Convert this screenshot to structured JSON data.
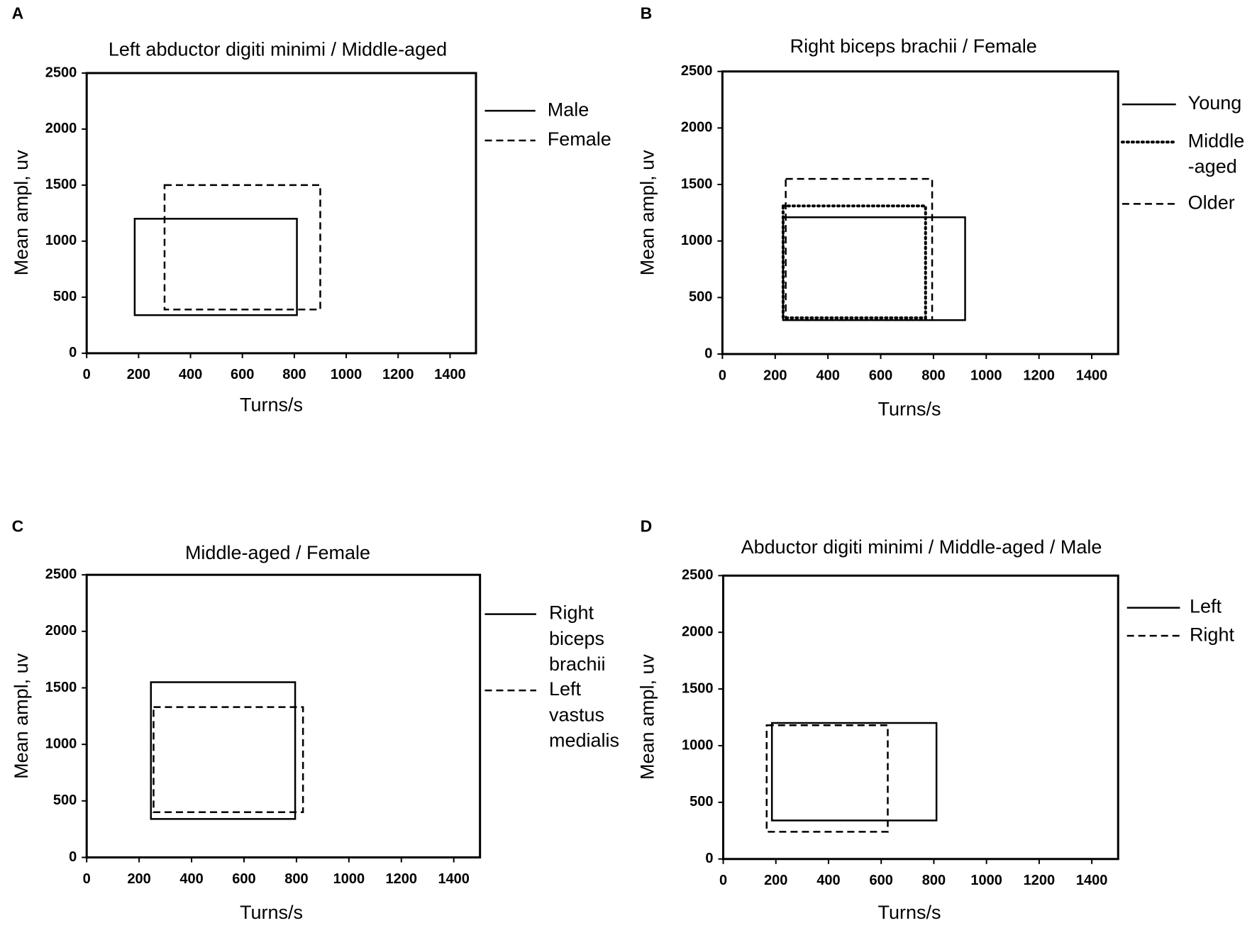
{
  "chart_data": [
    {
      "type": "range-box",
      "label": "A",
      "title": "Left abductor digiti minimi / Middle-aged",
      "x_label": "Turns/s",
      "y_label": "Mean ampl, uv",
      "xlim": [
        0,
        1500
      ],
      "xticks": [
        0,
        200,
        400,
        600,
        800,
        1000,
        1200,
        1400
      ],
      "ylim": [
        0,
        2500
      ],
      "yticks": [
        0,
        500,
        1000,
        1500,
        2000,
        2500
      ],
      "series": [
        {
          "name": "Male",
          "color": "#000000",
          "dash": "solid",
          "x": [
            185,
            810
          ],
          "y": [
            340,
            1200
          ]
        },
        {
          "name": "Female",
          "color": "#000000",
          "dash": "dashed",
          "x": [
            300,
            900
          ],
          "y": [
            390,
            1500
          ]
        }
      ]
    },
    {
      "type": "range-box",
      "label": "B",
      "title": "Right biceps brachii / Female",
      "x_label": "Turns/s",
      "y_label": "Mean ampl, uv",
      "xlim": [
        0,
        1500
      ],
      "xticks": [
        0,
        200,
        400,
        600,
        800,
        1000,
        1200,
        1400
      ],
      "ylim": [
        0,
        2500
      ],
      "yticks": [
        0,
        500,
        1000,
        1500,
        2000,
        2500
      ],
      "series": [
        {
          "name": "Young",
          "color": "#000000",
          "dash": "solid",
          "x": [
            230,
            920
          ],
          "y": [
            300,
            1210
          ]
        },
        {
          "name": "Middle\n-aged",
          "color": "#000000",
          "dash": "dotted",
          "x": [
            230,
            770
          ],
          "y": [
            320,
            1310
          ]
        },
        {
          "name": "Older",
          "color": "#000000",
          "dash": "dashed",
          "x": [
            240,
            795
          ],
          "y": [
            300,
            1550
          ]
        }
      ]
    },
    {
      "type": "range-box",
      "label": "C",
      "title": "Middle-aged / Female",
      "x_label": "Turns/s",
      "y_label": "Mean ampl, uv",
      "xlim": [
        0,
        1500
      ],
      "xticks": [
        0,
        200,
        400,
        600,
        800,
        1000,
        1200,
        1400
      ],
      "ylim": [
        0,
        2500
      ],
      "yticks": [
        0,
        500,
        1000,
        1500,
        2000,
        2500
      ],
      "series": [
        {
          "name": "Right\nbiceps\nbrachii",
          "color": "#000000",
          "dash": "solid",
          "x": [
            245,
            795
          ],
          "y": [
            340,
            1550
          ]
        },
        {
          "name": "Left\nvastus\nmedialis",
          "color": "#000000",
          "dash": "dashed",
          "x": [
            255,
            825
          ],
          "y": [
            400,
            1330
          ]
        }
      ]
    },
    {
      "type": "range-box",
      "label": "D",
      "title": "Abductor digiti minimi / Middle-aged / Male",
      "x_label": "Turns/s",
      "y_label": "Mean ampl, uv",
      "xlim": [
        0,
        1500
      ],
      "xticks": [
        0,
        200,
        400,
        600,
        800,
        1000,
        1200,
        1400
      ],
      "ylim": [
        0,
        2500
      ],
      "yticks": [
        0,
        500,
        1000,
        1500,
        2000,
        2500
      ],
      "series": [
        {
          "name": "Left",
          "color": "#000000",
          "dash": "solid",
          "x": [
            185,
            810
          ],
          "y": [
            340,
            1200
          ]
        },
        {
          "name": "Right",
          "color": "#000000",
          "dash": "dashed",
          "x": [
            165,
            625
          ],
          "y": [
            240,
            1180
          ]
        }
      ]
    }
  ]
}
